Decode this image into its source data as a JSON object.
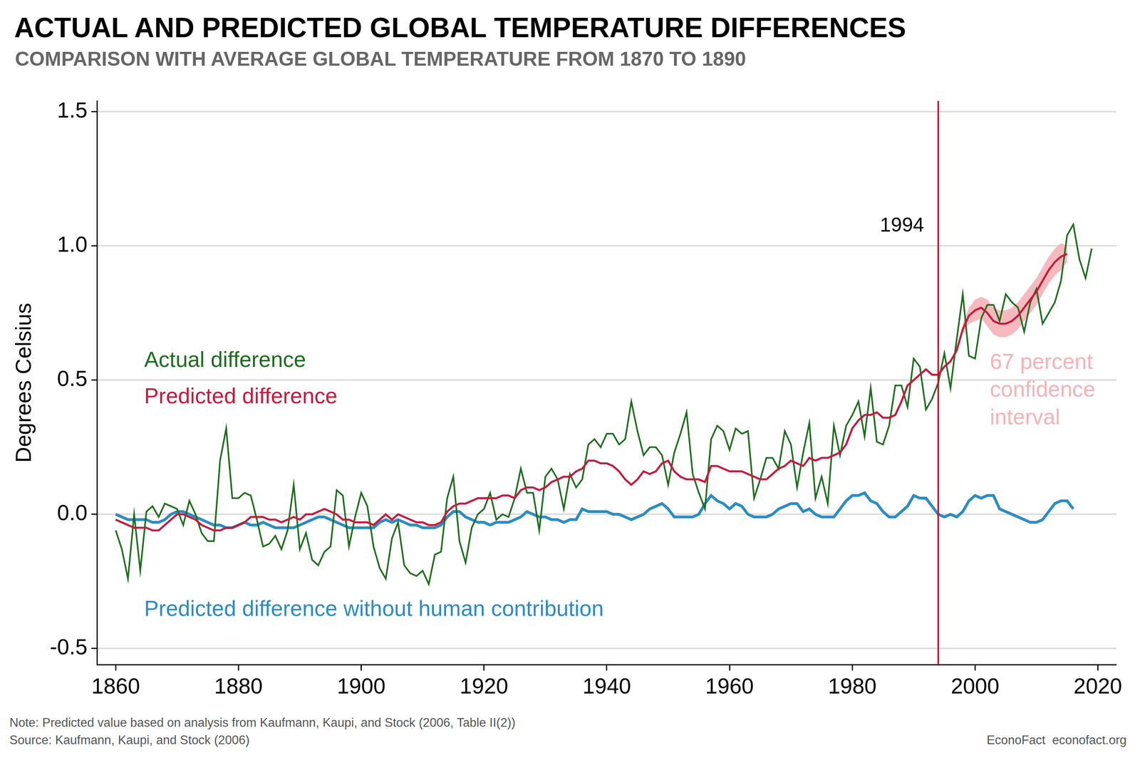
{
  "chart_data": {
    "type": "line",
    "title": "ACTUAL AND PREDICTED GLOBAL TEMPERATURE DIFFERENCES",
    "subtitle": "COMPARISON WITH AVERAGE GLOBAL TEMPERATURE FROM 1870 TO 1890",
    "y_label": "Degrees Celsius",
    "note": "Note: Predicted value based on analysis from Kaufmann, Kaupi, and Stock (2006, Table II(2))",
    "source": "Source: Kaufmann, Kaupi, and Stock (2006)",
    "credit": "EconoFact  econofact.org",
    "xlim": [
      1857,
      2023
    ],
    "xticks": [
      1860,
      1880,
      1900,
      1920,
      1940,
      1960,
      1980,
      2000,
      2020
    ],
    "ylim": [
      -0.56,
      1.54
    ],
    "yticks": [
      -0.5,
      {
        "value": 0,
        "label": "0.0"
      },
      0.5,
      {
        "value": 1,
        "label": "1.0"
      },
      1.5
    ],
    "grid": "y",
    "x": [
      1860,
      1861,
      1862,
      1863,
      1864,
      1865,
      1866,
      1867,
      1868,
      1869,
      1870,
      1871,
      1872,
      1873,
      1874,
      1875,
      1876,
      1877,
      1878,
      1879,
      1880,
      1881,
      1882,
      1883,
      1884,
      1885,
      1886,
      1887,
      1888,
      1889,
      1890,
      1891,
      1892,
      1893,
      1894,
      1895,
      1896,
      1897,
      1898,
      1899,
      1900,
      1901,
      1902,
      1903,
      1904,
      1905,
      1906,
      1907,
      1908,
      1909,
      1910,
      1911,
      1912,
      1913,
      1914,
      1915,
      1916,
      1917,
      1918,
      1919,
      1920,
      1921,
      1922,
      1923,
      1924,
      1925,
      1926,
      1927,
      1928,
      1929,
      1930,
      1931,
      1932,
      1933,
      1934,
      1935,
      1936,
      1937,
      1938,
      1939,
      1940,
      1941,
      1942,
      1943,
      1944,
      1945,
      1946,
      1947,
      1948,
      1949,
      1950,
      1951,
      1952,
      1953,
      1954,
      1955,
      1956,
      1957,
      1958,
      1959,
      1960,
      1961,
      1962,
      1963,
      1964,
      1965,
      1966,
      1967,
      1968,
      1969,
      1970,
      1971,
      1972,
      1973,
      1974,
      1975,
      1976,
      1977,
      1978,
      1979,
      1980,
      1981,
      1982,
      1983,
      1984,
      1985,
      1986,
      1987,
      1988,
      1989,
      1990,
      1991,
      1992,
      1993,
      1994,
      1995,
      1996,
      1997,
      1998,
      1999,
      2000,
      2001,
      2002,
      2003,
      2004,
      2005,
      2006,
      2007,
      2008,
      2009,
      2010,
      2011,
      2012,
      2013,
      2014,
      2015,
      2016,
      2017,
      2018,
      2019
    ],
    "series": [
      {
        "name": "Actual difference",
        "color": "#1d6e1d",
        "type": "line",
        "values": [
          -0.06,
          -0.13,
          -0.24,
          0.0,
          -0.21,
          0.01,
          0.03,
          -0.01,
          0.04,
          0.03,
          0.02,
          -0.04,
          0.05,
          0.0,
          -0.07,
          -0.1,
          -0.1,
          0.2,
          0.32,
          0.06,
          0.06,
          0.08,
          0.07,
          -0.02,
          -0.12,
          -0.11,
          -0.08,
          -0.13,
          -0.06,
          0.11,
          -0.13,
          -0.07,
          -0.17,
          -0.19,
          -0.14,
          -0.12,
          0.09,
          0.07,
          -0.12,
          -0.01,
          0.08,
          0.03,
          -0.12,
          -0.2,
          -0.24,
          -0.09,
          -0.03,
          -0.19,
          -0.22,
          -0.23,
          -0.21,
          -0.26,
          -0.15,
          -0.14,
          0.06,
          0.14,
          -0.1,
          -0.18,
          -0.05,
          0.0,
          0.02,
          0.08,
          -0.02,
          0.0,
          -0.01,
          0.06,
          0.17,
          0.08,
          0.08,
          -0.06,
          0.14,
          0.17,
          0.13,
          0.02,
          0.15,
          0.1,
          0.13,
          0.26,
          0.28,
          0.25,
          0.3,
          0.3,
          0.26,
          0.28,
          0.42,
          0.31,
          0.22,
          0.25,
          0.25,
          0.22,
          0.11,
          0.23,
          0.3,
          0.38,
          0.15,
          0.08,
          0.02,
          0.28,
          0.33,
          0.31,
          0.24,
          0.32,
          0.3,
          0.31,
          0.06,
          0.13,
          0.21,
          0.21,
          0.17,
          0.31,
          0.26,
          0.1,
          0.23,
          0.34,
          0.06,
          0.14,
          0.04,
          0.33,
          0.22,
          0.33,
          0.37,
          0.42,
          0.29,
          0.47,
          0.27,
          0.26,
          0.33,
          0.48,
          0.48,
          0.4,
          0.58,
          0.55,
          0.39,
          0.43,
          0.49,
          0.6,
          0.47,
          0.65,
          0.82,
          0.59,
          0.58,
          0.73,
          0.78,
          0.78,
          0.72,
          0.82,
          0.79,
          0.77,
          0.68,
          0.79,
          0.84,
          0.71,
          0.75,
          0.79,
          0.87,
          1.04,
          1.08,
          0.95,
          0.88,
          0.99
        ]
      },
      {
        "name": "Predicted difference",
        "color": "#c8193c",
        "type": "line",
        "values": [
          -0.02,
          -0.03,
          -0.04,
          -0.05,
          -0.05,
          -0.05,
          -0.06,
          -0.06,
          -0.04,
          -0.02,
          0.0,
          0.0,
          -0.01,
          -0.02,
          -0.04,
          -0.05,
          -0.06,
          -0.06,
          -0.05,
          -0.05,
          -0.04,
          -0.03,
          -0.01,
          -0.01,
          -0.01,
          -0.02,
          -0.02,
          -0.03,
          -0.02,
          -0.01,
          -0.02,
          0.0,
          0.0,
          0.01,
          0.02,
          0.01,
          0.0,
          -0.02,
          -0.02,
          -0.03,
          -0.03,
          -0.03,
          -0.04,
          -0.02,
          0.0,
          -0.02,
          0.0,
          -0.01,
          -0.02,
          -0.03,
          -0.03,
          -0.04,
          -0.04,
          -0.03,
          0.01,
          0.03,
          0.04,
          0.04,
          0.05,
          0.06,
          0.06,
          0.06,
          0.06,
          0.07,
          0.07,
          0.06,
          0.09,
          0.1,
          0.1,
          0.09,
          0.1,
          0.12,
          0.13,
          0.14,
          0.14,
          0.16,
          0.17,
          0.2,
          0.2,
          0.19,
          0.19,
          0.18,
          0.16,
          0.13,
          0.11,
          0.13,
          0.16,
          0.15,
          0.16,
          0.19,
          0.2,
          0.16,
          0.14,
          0.13,
          0.13,
          0.13,
          0.12,
          0.18,
          0.18,
          0.17,
          0.16,
          0.16,
          0.16,
          0.15,
          0.14,
          0.13,
          0.13,
          0.15,
          0.17,
          0.18,
          0.2,
          0.19,
          0.18,
          0.21,
          0.2,
          0.21,
          0.21,
          0.22,
          0.23,
          0.26,
          0.32,
          0.35,
          0.37,
          0.37,
          0.38,
          0.36,
          0.36,
          0.37,
          0.42,
          0.48,
          0.5,
          0.52,
          0.54,
          0.52,
          0.52,
          0.55,
          0.57,
          0.61,
          0.69,
          0.74,
          0.76,
          0.77,
          0.75,
          0.72,
          0.71,
          0.71,
          0.72,
          0.74,
          0.77,
          0.8,
          0.83,
          0.87,
          0.91,
          0.94,
          0.96,
          0.97,
          null,
          null,
          null,
          null
        ]
      },
      {
        "name": "Predicted difference without human contribution",
        "color": "#2b8cc4",
        "type": "line",
        "values": [
          0.0,
          -0.01,
          -0.02,
          -0.02,
          -0.02,
          -0.02,
          -0.03,
          -0.03,
          -0.02,
          0.0,
          0.01,
          0.01,
          0.0,
          -0.01,
          -0.02,
          -0.03,
          -0.04,
          -0.04,
          -0.05,
          -0.05,
          -0.04,
          -0.03,
          -0.04,
          -0.04,
          -0.03,
          -0.04,
          -0.05,
          -0.05,
          -0.05,
          -0.05,
          -0.04,
          -0.03,
          -0.02,
          -0.01,
          -0.01,
          -0.02,
          -0.03,
          -0.04,
          -0.05,
          -0.05,
          -0.05,
          -0.05,
          -0.05,
          -0.03,
          -0.02,
          -0.03,
          -0.02,
          -0.03,
          -0.04,
          -0.04,
          -0.05,
          -0.05,
          -0.05,
          -0.04,
          -0.01,
          0.01,
          0.01,
          -0.01,
          -0.02,
          -0.03,
          -0.03,
          -0.04,
          -0.03,
          -0.03,
          -0.03,
          -0.02,
          -0.01,
          0.01,
          0.0,
          -0.01,
          -0.01,
          -0.02,
          -0.02,
          -0.03,
          -0.02,
          -0.02,
          0.02,
          0.01,
          0.01,
          0.01,
          0.01,
          0.0,
          0.0,
          -0.01,
          -0.02,
          -0.01,
          0.0,
          0.02,
          0.03,
          0.04,
          0.02,
          -0.01,
          -0.01,
          -0.01,
          -0.01,
          0.0,
          0.04,
          0.07,
          0.05,
          0.04,
          0.02,
          0.04,
          0.03,
          0.0,
          -0.01,
          -0.01,
          -0.01,
          0.0,
          0.02,
          0.03,
          0.04,
          0.04,
          0.01,
          0.02,
          0.0,
          -0.01,
          -0.01,
          -0.01,
          0.02,
          0.05,
          0.07,
          0.07,
          0.08,
          0.05,
          0.04,
          0.01,
          -0.01,
          -0.01,
          0.01,
          0.03,
          0.07,
          0.06,
          0.06,
          0.03,
          0.0,
          -0.01,
          0.0,
          -0.01,
          0.01,
          0.05,
          0.07,
          0.06,
          0.07,
          0.07,
          0.02,
          0.01,
          0.0,
          -0.01,
          -0.02,
          -0.03,
          -0.03,
          -0.02,
          0.01,
          0.04,
          0.05,
          0.05,
          0.02,
          null,
          null,
          null
        ]
      },
      {
        "name": "67 percent confidence interval",
        "color": "#f5b3b7",
        "type": "band",
        "x": [
          1998,
          1999,
          2000,
          2001,
          2002,
          2003,
          2004,
          2005,
          2006,
          2007,
          2008,
          2009,
          2010,
          2011,
          2012,
          2013,
          2014,
          2015
        ],
        "lower": [
          0.67,
          0.71,
          0.72,
          0.73,
          0.7,
          0.67,
          0.66,
          0.66,
          0.67,
          0.69,
          0.72,
          0.75,
          0.78,
          0.82,
          0.86,
          0.89,
          0.91,
          0.94
        ],
        "upper": [
          0.71,
          0.77,
          0.8,
          0.81,
          0.8,
          0.77,
          0.76,
          0.76,
          0.77,
          0.79,
          0.82,
          0.85,
          0.88,
          0.92,
          0.96,
          0.99,
          1.01,
          1.0
        ]
      }
    ],
    "annotations": [
      {
        "type": "vline",
        "x": 1994,
        "label": "1994",
        "color": "#c8102e"
      }
    ]
  }
}
